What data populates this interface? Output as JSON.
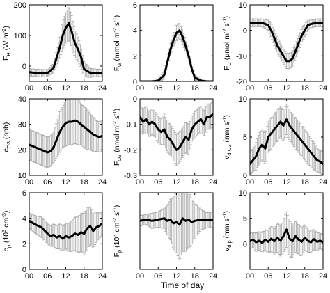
{
  "figure": {
    "xlabel": "Time of day",
    "colors": {
      "line": "#000000",
      "errorbar": "#a8a8a8",
      "axis": "#000000"
    }
  },
  "chart_data": [
    {
      "type": "line",
      "ylabel": "F_H (W m^-2)",
      "ylabel_parts": [
        [
          "F",
          ""
        ],
        [
          "H",
          "sub"
        ],
        [
          " (W m",
          ""
        ],
        [
          "-2",
          "sup"
        ],
        [
          ")",
          ""
        ]
      ],
      "xlim": [
        0,
        24
      ],
      "ylim": [
        -50,
        200
      ],
      "xticks": [
        0,
        6,
        12,
        18,
        24
      ],
      "xticklabels": [
        "00",
        "06",
        "12",
        "18",
        "24"
      ],
      "yticks": [
        0,
        100,
        200
      ],
      "x": [
        0,
        2,
        4,
        6,
        8,
        10,
        11,
        12,
        13,
        14,
        15,
        16,
        17,
        18,
        20,
        22,
        24
      ],
      "y": [
        -20,
        -22,
        -23,
        -23,
        -5,
        60,
        100,
        125,
        140,
        110,
        75,
        55,
        30,
        -10,
        -22,
        -22,
        -23
      ],
      "err": [
        12,
        12,
        12,
        12,
        15,
        35,
        45,
        50,
        55,
        55,
        45,
        40,
        35,
        25,
        15,
        12,
        12
      ]
    },
    {
      "type": "line",
      "ylabel": "F_w (mmol m^-2 s^-1)",
      "ylabel_parts": [
        [
          "F",
          ""
        ],
        [
          "w",
          "sub"
        ],
        [
          " (mmol m",
          ""
        ],
        [
          "-2",
          "sup"
        ],
        [
          " s",
          ""
        ],
        [
          "-1",
          "sup"
        ],
        [
          ")",
          ""
        ]
      ],
      "xlim": [
        0,
        24
      ],
      "ylim": [
        0,
        6
      ],
      "xticks": [
        0,
        6,
        12,
        18,
        24
      ],
      "xticklabels": [
        "00",
        "06",
        "12",
        "18",
        "24"
      ],
      "yticks": [
        0,
        2,
        4,
        6
      ],
      "x": [
        0,
        2,
        4,
        6,
        8,
        9,
        10,
        11,
        12,
        13,
        14,
        15,
        16,
        17,
        18,
        20,
        22,
        24
      ],
      "y": [
        0,
        0,
        0,
        0.05,
        0.5,
        1.5,
        2.5,
        3.2,
        3.8,
        4.0,
        3.5,
        2.8,
        2.0,
        1.0,
        0.3,
        0.05,
        0,
        0
      ],
      "err": [
        0.05,
        0.05,
        0.05,
        0.1,
        0.3,
        0.4,
        0.5,
        0.5,
        0.6,
        0.6,
        0.6,
        0.5,
        0.4,
        0.3,
        0.2,
        0.1,
        0.05,
        0.05
      ]
    },
    {
      "type": "line",
      "ylabel": "F_C (μmol m^-2 s^-1)",
      "ylabel_parts": [
        [
          "F",
          ""
        ],
        [
          "C",
          "sub"
        ],
        [
          " (μmol m",
          ""
        ],
        [
          "-2",
          "sup"
        ],
        [
          " s",
          ""
        ],
        [
          "-1",
          "sup"
        ],
        [
          ")",
          ""
        ]
      ],
      "xlim": [
        0,
        24
      ],
      "ylim": [
        -20,
        10
      ],
      "xticks": [
        0,
        6,
        12,
        18,
        24
      ],
      "xticklabels": [
        "00",
        "06",
        "12",
        "18",
        "24"
      ],
      "yticks": [
        -20,
        -10,
        0,
        10
      ],
      "x": [
        0,
        2,
        4,
        6,
        7,
        8,
        9,
        10,
        11,
        12,
        13,
        14,
        15,
        16,
        17,
        18,
        19,
        20,
        22,
        24
      ],
      "y": [
        3,
        3,
        3,
        2,
        0,
        -3,
        -6,
        -8,
        -10,
        -12,
        -12,
        -11,
        -8,
        -5,
        -2,
        0,
        2,
        2.5,
        3,
        3
      ],
      "err": [
        1.5,
        1.5,
        1.5,
        2,
        3,
        3,
        3,
        3,
        3,
        3,
        3,
        3,
        3,
        3,
        3,
        2.5,
        2,
        1.5,
        1.5,
        1.5
      ]
    },
    {
      "type": "line",
      "ylabel": "c_O3 (ppb)",
      "ylabel_parts": [
        [
          "c",
          ""
        ],
        [
          "O3",
          "sub"
        ],
        [
          " (ppb)",
          ""
        ]
      ],
      "xlim": [
        0,
        24
      ],
      "ylim": [
        10,
        40
      ],
      "xticks": [
        0,
        6,
        12,
        18,
        24
      ],
      "xticklabels": [
        "00",
        "06",
        "12",
        "18",
        "24"
      ],
      "yticks": [
        10,
        20,
        30,
        40
      ],
      "x": [
        0,
        2,
        4,
        6,
        7,
        8,
        9,
        10,
        11,
        12,
        13,
        14,
        15,
        16,
        17,
        18,
        19,
        20,
        21,
        22,
        23,
        24
      ],
      "y": [
        22,
        21,
        20,
        19,
        19.5,
        21,
        24,
        27,
        29,
        30.5,
        31,
        31,
        31.5,
        31,
        30,
        29,
        28,
        27,
        26,
        25.5,
        25,
        25.5
      ],
      "err": [
        6,
        6,
        6,
        6,
        6,
        6,
        7,
        8,
        8,
        9,
        9,
        9,
        9,
        9,
        8,
        8,
        8,
        7,
        7,
        6,
        6,
        6
      ]
    },
    {
      "type": "line",
      "ylabel": "F_O3 (nmol m^-2 s^-1)",
      "ylabel_parts": [
        [
          "F",
          ""
        ],
        [
          "O3",
          "sub"
        ],
        [
          " (nmol m",
          ""
        ],
        [
          "-2",
          "sup"
        ],
        [
          " s",
          ""
        ],
        [
          "-1",
          "sup"
        ],
        [
          ")",
          ""
        ]
      ],
      "xlim": [
        0,
        24
      ],
      "ylim": [
        -0.3,
        0
      ],
      "xticks": [
        0,
        6,
        12,
        18,
        24
      ],
      "xticklabels": [
        "00",
        "06",
        "12",
        "18",
        "24"
      ],
      "yticks": [
        -0.3,
        -0.2,
        -0.1,
        0
      ],
      "yticklabels": [
        "-0.3",
        "-0.2",
        "-0.1",
        "0"
      ],
      "x": [
        0,
        1,
        2,
        3,
        4,
        5,
        6,
        7,
        8,
        9,
        10,
        11,
        12,
        13,
        14,
        15,
        16,
        17,
        18,
        19,
        20,
        21,
        22,
        23,
        24
      ],
      "y": [
        -0.07,
        -0.09,
        -0.08,
        -0.1,
        -0.09,
        -0.1,
        -0.12,
        -0.13,
        -0.12,
        -0.15,
        -0.16,
        -0.18,
        -0.2,
        -0.19,
        -0.17,
        -0.15,
        -0.16,
        -0.12,
        -0.1,
        -0.09,
        -0.08,
        -0.1,
        -0.07,
        -0.07,
        -0.06
      ],
      "err": [
        0.05,
        0.05,
        0.05,
        0.05,
        0.05,
        0.05,
        0.05,
        0.05,
        0.06,
        0.06,
        0.06,
        0.06,
        0.06,
        0.06,
        0.06,
        0.06,
        0.06,
        0.05,
        0.05,
        0.05,
        0.05,
        0.05,
        0.05,
        0.05,
        0.05
      ]
    },
    {
      "type": "line",
      "ylabel": "v_d,O3 (mm s^-1)",
      "ylabel_parts": [
        [
          "v",
          ""
        ],
        [
          "d,O3",
          "sub"
        ],
        [
          " (mm s",
          ""
        ],
        [
          "-1",
          "sup"
        ],
        [
          ")",
          ""
        ]
      ],
      "xlim": [
        0,
        24
      ],
      "ylim": [
        0,
        10
      ],
      "xticks": [
        0,
        6,
        12,
        18,
        24
      ],
      "xticklabels": [
        "00",
        "06",
        "12",
        "18",
        "24"
      ],
      "yticks": [
        0,
        5,
        10
      ],
      "x": [
        0,
        1,
        2,
        3,
        4,
        5,
        6,
        7,
        8,
        9,
        10,
        11,
        12,
        13,
        14,
        15,
        16,
        17,
        18,
        19,
        20,
        21,
        22,
        23,
        24
      ],
      "y": [
        1.5,
        2,
        2.5,
        3.5,
        4,
        3.5,
        5,
        5.5,
        6,
        6.5,
        7,
        6.5,
        7.3,
        6.5,
        6,
        5.5,
        5,
        4.5,
        4,
        3.5,
        3,
        2.5,
        2,
        1.8,
        1.5
      ],
      "err": [
        1.5,
        1.5,
        1.8,
        2,
        2,
        2,
        2,
        2,
        2,
        2,
        2,
        2,
        2,
        2,
        2,
        2,
        2,
        2,
        2,
        2,
        1.8,
        1.8,
        1.5,
        1.5,
        1.5
      ]
    },
    {
      "type": "line",
      "ylabel": "c_p (10^3 cm^-3)",
      "ylabel_parts": [
        [
          "c",
          ""
        ],
        [
          "p",
          "sub"
        ],
        [
          " (10",
          ""
        ],
        [
          "3",
          "sup"
        ],
        [
          " cm",
          ""
        ],
        [
          "-3",
          "sup"
        ],
        [
          ")",
          ""
        ]
      ],
      "xlim": [
        0,
        24
      ],
      "ylim": [
        0,
        6
      ],
      "xticks": [
        0,
        6,
        12,
        18,
        24
      ],
      "xticklabels": [
        "00",
        "06",
        "12",
        "18",
        "24"
      ],
      "yticks": [
        0,
        2,
        4,
        6
      ],
      "x": [
        0,
        2,
        4,
        6,
        7,
        8,
        9,
        10,
        11,
        12,
        13,
        14,
        15,
        16,
        17,
        18,
        19,
        20,
        21,
        22,
        23,
        24
      ],
      "y": [
        3.8,
        3.5,
        3.3,
        2.8,
        2.6,
        2.7,
        2.5,
        2.6,
        2.4,
        2.6,
        2.5,
        2.6,
        2.8,
        2.7,
        2.9,
        2.8,
        3.2,
        3.4,
        3.0,
        3.3,
        3.4,
        3.6
      ],
      "err": [
        0.6,
        0.7,
        0.8,
        0.8,
        0.8,
        0.9,
        0.9,
        1.0,
        1.0,
        1.0,
        1.1,
        1.2,
        1.3,
        1.4,
        1.5,
        1.6,
        1.6,
        1.5,
        1.3,
        1.2,
        1.0,
        0.9
      ]
    },
    {
      "type": "line",
      "ylabel": "F_p (10^3 cm^-2 s^-1)",
      "ylabel_parts": [
        [
          "F",
          ""
        ],
        [
          "p",
          "sub"
        ],
        [
          " (10",
          ""
        ],
        [
          "3",
          "sup"
        ],
        [
          " cm",
          ""
        ],
        [
          "-2",
          "sup"
        ],
        [
          " s",
          ""
        ],
        [
          "-1",
          "sup"
        ],
        [
          ")",
          ""
        ]
      ],
      "xlim": [
        0,
        24
      ],
      "ylim": [
        -2,
        1
      ],
      "xticks": [
        0,
        6,
        12,
        18,
        24
      ],
      "xticklabels": [
        "00",
        "06",
        "12",
        "18",
        "24"
      ],
      "yticks": [],
      "x": [
        0,
        2,
        4,
        6,
        8,
        9,
        10,
        11,
        12,
        13,
        14,
        15,
        16,
        17,
        18,
        20,
        22,
        24
      ],
      "y": [
        -0.1,
        -0.05,
        -0.1,
        -0.05,
        0,
        -0.1,
        -0.05,
        -0.2,
        -0.15,
        -0.25,
        0,
        -0.1,
        -0.05,
        -0.15,
        -0.1,
        -0.05,
        -0.08,
        -0.05
      ],
      "err": [
        0.2,
        0.2,
        0.3,
        0.3,
        0.4,
        0.6,
        0.8,
        1.0,
        1.2,
        1.4,
        1.3,
        1.2,
        1.1,
        0.9,
        0.7,
        0.4,
        0.3,
        0.3
      ]
    },
    {
      "type": "line",
      "ylabel": "v_d,p (mm s^-1)",
      "ylabel_parts": [
        [
          "v",
          ""
        ],
        [
          "d,p",
          "sub"
        ],
        [
          " (mm s",
          ""
        ],
        [
          "-1",
          "sup"
        ],
        [
          ")",
          ""
        ]
      ],
      "xlim": [
        0,
        24
      ],
      "ylim": [
        -5,
        10
      ],
      "xticks": [
        0,
        6,
        12,
        18,
        24
      ],
      "xticklabels": [
        "00",
        "06",
        "12",
        "18",
        "24"
      ],
      "yticks": [
        0,
        5,
        10
      ],
      "x": [
        0,
        1,
        2,
        3,
        4,
        5,
        6,
        7,
        8,
        9,
        10,
        11,
        12,
        13,
        14,
        15,
        16,
        17,
        18,
        19,
        20,
        21,
        22,
        23,
        24
      ],
      "y": [
        0.5,
        0.8,
        0.3,
        0.6,
        0.2,
        0.8,
        0.4,
        1.0,
        0.5,
        1.2,
        0.6,
        1.5,
        2.8,
        1.0,
        0.5,
        1.5,
        0.8,
        0.4,
        1.2,
        0.6,
        0.3,
        0.9,
        0.4,
        0.6,
        0.3
      ],
      "err": [
        1.5,
        1.5,
        1.8,
        1.8,
        2,
        2,
        2.2,
        2.5,
        2.5,
        2.8,
        3,
        3.2,
        3.5,
        3.5,
        3.2,
        3,
        3,
        2.8,
        2.5,
        2.2,
        2,
        2,
        1.8,
        1.5,
        1.5
      ]
    }
  ]
}
